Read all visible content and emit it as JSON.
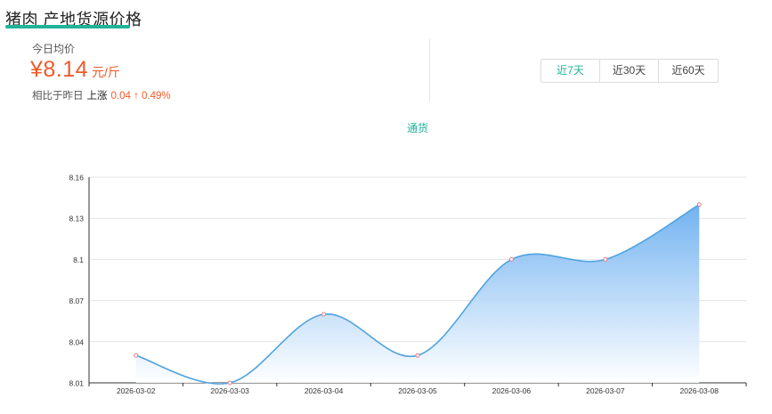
{
  "header": {
    "title": "猪肉 产地货源价格"
  },
  "price": {
    "label": "今日均价",
    "value": "¥8.14",
    "unit": "元/斤"
  },
  "compare": {
    "label": "相比于昨日",
    "trend": "上涨",
    "delta": "0.04 ↑ 0.49%"
  },
  "range_tabs": [
    {
      "label": "近7天",
      "active": true
    },
    {
      "label": "近30天",
      "active": false
    },
    {
      "label": "近60天",
      "active": false
    }
  ],
  "legend": {
    "label": "通货"
  },
  "colors": {
    "accent": "#1fb39a",
    "price": "#f05a28",
    "line": "#4fa3e0",
    "area_top": "#6aaef0",
    "point": "#e07a8a"
  },
  "chart_data": {
    "type": "area",
    "title": "",
    "xlabel": "",
    "ylabel": "",
    "categories": [
      "2026-03-02",
      "2026-03-03",
      "2026-03-04",
      "2026-03-05",
      "2026-03-06",
      "2026-03-07",
      "2026-03-08"
    ],
    "series": [
      {
        "values": [
          8.03,
          8.01,
          8.06,
          8.03,
          8.1,
          8.1,
          8.14
        ]
      }
    ],
    "ylim": [
      8.01,
      8.16
    ],
    "yticks": [
      8.01,
      8.04,
      8.07,
      8.1,
      8.13,
      8.16
    ],
    "grid": true,
    "smooth": true,
    "legend_position": "top-center"
  }
}
